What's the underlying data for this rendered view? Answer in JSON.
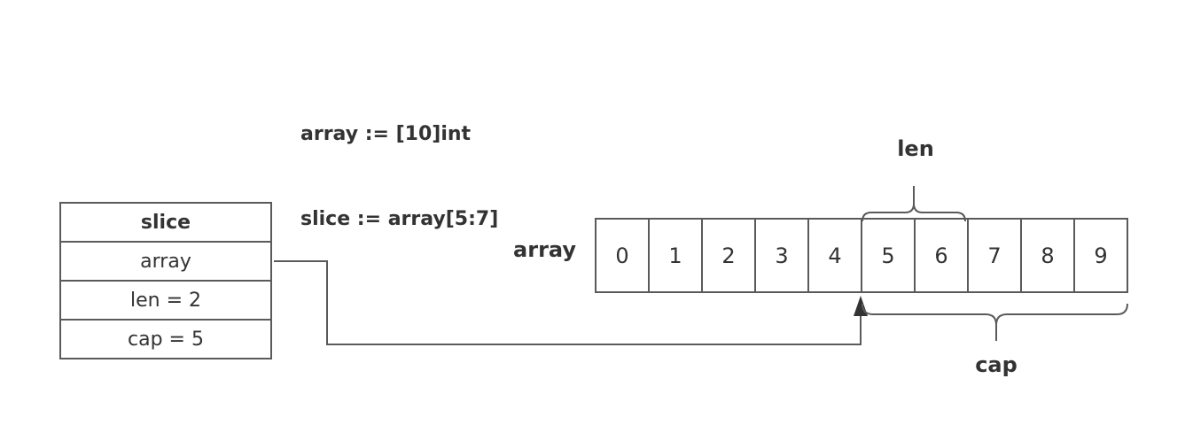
{
  "code": {
    "line1": "array := [10]int",
    "line2": "slice := array[5:7]"
  },
  "slice_struct": {
    "title": "slice",
    "fields": [
      "array",
      "len = 2",
      "cap = 5"
    ]
  },
  "array": {
    "label": "array",
    "elements": [
      "0",
      "1",
      "2",
      "3",
      "4",
      "5",
      "6",
      "7",
      "8",
      "9"
    ]
  },
  "braces": {
    "len_label": "len",
    "cap_label": "cap"
  },
  "colors": {
    "stroke": "#5a5a5a",
    "text": "#333333",
    "background": "#ffffff"
  }
}
